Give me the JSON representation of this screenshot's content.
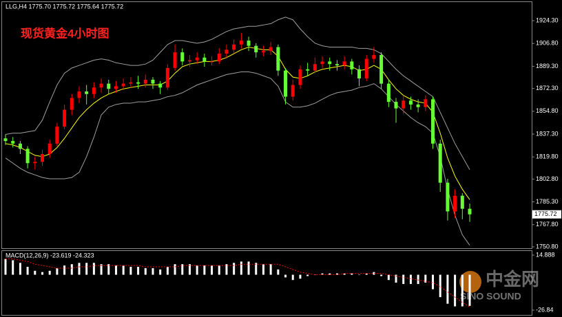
{
  "chart_data": [
    {
      "type": "candlestick",
      "header": "LLG,H4  1775.70 1775.72 1775.64 1775.72",
      "title": "现货黄金4小时图",
      "up_color": "#ff0000",
      "down_color": "#66ff33",
      "band_color": "#a0a0a0",
      "ma_color": "#ffff00",
      "ylim": [
        1749.2,
        1939.1
      ],
      "yticks": [
        {
          "value": 1924.3,
          "label": "1924.30"
        },
        {
          "value": 1906.8,
          "label": "1906.80"
        },
        {
          "value": 1889.3,
          "label": "1889.30"
        },
        {
          "value": 1872.3,
          "label": "1872.30"
        },
        {
          "value": 1854.8,
          "label": "1854.80"
        },
        {
          "value": 1837.3,
          "label": "1837.30"
        },
        {
          "value": 1819.8,
          "label": "1819.80"
        },
        {
          "value": 1802.8,
          "label": "1802.80"
        },
        {
          "value": 1785.3,
          "label": "1785.30"
        },
        {
          "value": 1767.8,
          "label": "1767.80"
        },
        {
          "value": 1750.8,
          "label": "1750.80"
        }
      ],
      "open": [
        1834,
        1832,
        1830,
        1826,
        1815,
        1816,
        1822,
        1830,
        1843,
        1856,
        1865,
        1870,
        1868,
        1873,
        1876,
        1872,
        1874,
        1876,
        1877,
        1876,
        1879,
        1876,
        1873,
        1888,
        1900,
        1893,
        1894,
        1896,
        1893,
        1893,
        1899,
        1902,
        1906,
        1909,
        1905,
        1900,
        1901,
        1904,
        1886,
        1866,
        1875,
        1887,
        1886,
        1891,
        1893,
        1891,
        1890,
        1893,
        1887,
        1880,
        1895,
        1898,
        1876,
        1862,
        1857,
        1863,
        1860,
        1858,
        1864,
        1830,
        1800,
        1778,
        1790,
        1780
      ],
      "high": [
        1837,
        1835,
        1832,
        1828,
        1820,
        1825,
        1833,
        1846,
        1860,
        1868,
        1874,
        1875,
        1877,
        1880,
        1879,
        1878,
        1880,
        1881,
        1882,
        1883,
        1881,
        1878,
        1891,
        1906,
        1903,
        1898,
        1900,
        1899,
        1897,
        1903,
        1906,
        1910,
        1915,
        1912,
        1907,
        1905,
        1908,
        1906,
        1888,
        1879,
        1890,
        1892,
        1896,
        1897,
        1896,
        1894,
        1897,
        1895,
        1890,
        1898,
        1904,
        1900,
        1879,
        1865,
        1867,
        1866,
        1864,
        1867,
        1866,
        1833,
        1803,
        1795,
        1792,
        1784
      ],
      "low": [
        1829,
        1827,
        1822,
        1811,
        1810,
        1813,
        1819,
        1828,
        1841,
        1852,
        1861,
        1860,
        1865,
        1869,
        1868,
        1869,
        1871,
        1873,
        1872,
        1873,
        1872,
        1868,
        1871,
        1886,
        1890,
        1889,
        1891,
        1889,
        1890,
        1891,
        1896,
        1899,
        1903,
        1901,
        1896,
        1897,
        1898,
        1882,
        1860,
        1863,
        1872,
        1882,
        1884,
        1888,
        1886,
        1886,
        1887,
        1883,
        1874,
        1878,
        1892,
        1872,
        1858,
        1846,
        1853,
        1856,
        1854,
        1855,
        1826,
        1793,
        1771,
        1773,
        1772,
        1770
      ],
      "close": [
        1832,
        1830,
        1826,
        1815,
        1816,
        1822,
        1830,
        1843,
        1856,
        1865,
        1870,
        1868,
        1873,
        1876,
        1872,
        1874,
        1876,
        1877,
        1876,
        1879,
        1876,
        1873,
        1888,
        1900,
        1893,
        1894,
        1896,
        1893,
        1893,
        1899,
        1902,
        1906,
        1909,
        1905,
        1900,
        1901,
        1904,
        1886,
        1866,
        1875,
        1887,
        1886,
        1891,
        1893,
        1891,
        1890,
        1893,
        1887,
        1880,
        1895,
        1898,
        1876,
        1862,
        1857,
        1863,
        1860,
        1858,
        1864,
        1830,
        1800,
        1778,
        1790,
        1780,
        1775.72
      ],
      "band_upper": [
        1837,
        1838,
        1838,
        1839,
        1840,
        1848,
        1862,
        1875,
        1884,
        1888,
        1890,
        1892,
        1894,
        1895,
        1894,
        1892,
        1891,
        1890,
        1890,
        1891,
        1894,
        1900,
        1906,
        1909,
        1909,
        1908,
        1907,
        1908,
        1910,
        1913,
        1916,
        1918,
        1919,
        1920,
        1920,
        1921,
        1922,
        1925,
        1927,
        1925,
        1918,
        1912,
        1907,
        1905,
        1904,
        1904,
        1904,
        1904,
        1903,
        1903,
        1902,
        1899,
        1893,
        1887,
        1882,
        1878,
        1874,
        1870,
        1866,
        1854,
        1842,
        1830,
        1820,
        1810
      ],
      "band_lower": [
        1819,
        1815,
        1811,
        1808,
        1806,
        1804,
        1803,
        1803,
        1803,
        1804,
        1808,
        1820,
        1835,
        1852,
        1858,
        1860,
        1861,
        1861,
        1862,
        1862,
        1863,
        1864,
        1866,
        1867,
        1869,
        1872,
        1875,
        1877,
        1879,
        1881,
        1883,
        1884,
        1885,
        1885,
        1884,
        1882,
        1880,
        1874,
        1862,
        1858,
        1858,
        1859,
        1861,
        1864,
        1867,
        1869,
        1870,
        1871,
        1873,
        1874,
        1876,
        1872,
        1866,
        1860,
        1855,
        1850,
        1846,
        1843,
        1838,
        1820,
        1795,
        1775,
        1760,
        1752
      ],
      "ma": [
        1830,
        1829,
        1827,
        1824,
        1821,
        1820,
        1822,
        1827,
        1834,
        1842,
        1850,
        1856,
        1861,
        1865,
        1868,
        1870,
        1872,
        1873,
        1874,
        1875,
        1875,
        1875,
        1878,
        1884,
        1889,
        1891,
        1892,
        1893,
        1893,
        1894,
        1896,
        1899,
        1902,
        1904,
        1903,
        1902,
        1902,
        1897,
        1887,
        1881,
        1880,
        1882,
        1885,
        1887,
        1888,
        1889,
        1890,
        1889,
        1886,
        1887,
        1890,
        1887,
        1879,
        1872,
        1867,
        1864,
        1862,
        1861,
        1854,
        1838,
        1819,
        1805,
        1795,
        1787
      ]
    },
    {
      "type": "macd",
      "label": "MACD(12,26,9) -23.619 -24.323",
      "hist_color": "#ffffff",
      "signal_color": "#ff0000",
      "ylim": [
        -32.06,
        18.54
      ],
      "yticks": [
        14.888,
        -26.84
      ],
      "histogram": [
        12,
        11,
        9,
        6,
        3,
        2,
        3,
        5,
        7,
        8,
        9,
        9,
        9,
        8,
        8,
        7,
        7,
        6,
        6,
        5,
        5,
        4,
        6,
        8,
        8,
        8,
        7,
        7,
        7,
        7,
        8,
        9,
        10,
        10,
        9,
        8,
        8,
        4,
        -2,
        -4,
        -3,
        -1,
        0,
        1,
        1,
        1,
        1,
        1,
        0,
        1,
        2,
        -1,
        -4,
        -6,
        -7,
        -7,
        -7,
        -6,
        -11,
        -17,
        -22,
        -24,
        -24,
        -23.619
      ],
      "signal": [
        12,
        12,
        11,
        10,
        8,
        7,
        6,
        5,
        5,
        5,
        6,
        6,
        7,
        7,
        7,
        7,
        7,
        7,
        7,
        6,
        6,
        6,
        6,
        6,
        7,
        7,
        7,
        7,
        7,
        7,
        7,
        7,
        8,
        8,
        8,
        8,
        8,
        8,
        6,
        4,
        2,
        1,
        0,
        0,
        0,
        0,
        1,
        1,
        1,
        1,
        1,
        1,
        0,
        -1,
        -2,
        -3,
        -4,
        -5,
        -6,
        -9,
        -13,
        -17,
        -21,
        -24.323
      ]
    }
  ],
  "watermark": {
    "logo": "中金网",
    "brand": "SINO SOUND"
  }
}
